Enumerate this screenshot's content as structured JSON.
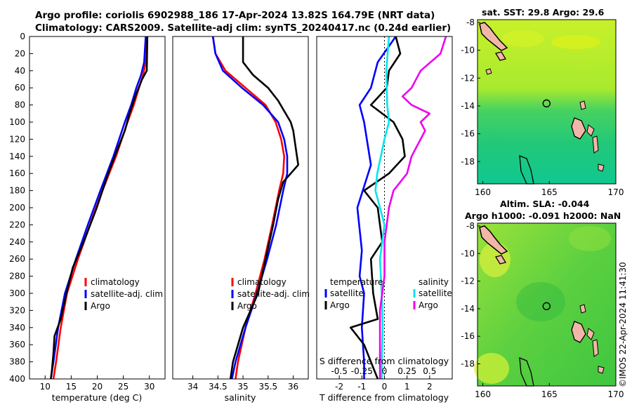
{
  "header": {
    "line1": "Argo profile: coriolis 6902988_186 17-Apr-2024 13.82S 164.79E (NRT data)",
    "line2": "Climatology: CARS2009. Satellite-adj clim: synTS_20240417.nc (0.24d earlier)"
  },
  "colors": {
    "climatology": "#ff0000",
    "satellite": "#0000ff",
    "argo": "#000000",
    "sal_satellite": "#00e5ee",
    "sal_argo": "#ee00ee"
  },
  "chart_data": [
    {
      "type": "line",
      "name": "temperature",
      "xlabel": "temperature (deg C)",
      "ylabel": "",
      "xlim": [
        7,
        33
      ],
      "ylim": [
        0,
        400
      ],
      "xticks": [
        10,
        15,
        20,
        25,
        30
      ],
      "yticks": [
        0,
        20,
        40,
        60,
        80,
        100,
        120,
        140,
        160,
        180,
        200,
        220,
        240,
        260,
        280,
        300,
        320,
        340,
        360,
        380,
        400
      ],
      "legend": [
        "climatology",
        "satellite-adj. clim",
        "Argo"
      ],
      "series": [
        {
          "name": "climatology",
          "depth": [
            0,
            30,
            45,
            60,
            80,
            100,
            140,
            180,
            220,
            260,
            300,
            340,
            380,
            400
          ],
          "values": [
            29.5,
            29.3,
            28.8,
            28.0,
            27.0,
            25.8,
            23.6,
            21.0,
            18.6,
            16.3,
            14.2,
            13.0,
            12.1,
            11.6
          ]
        },
        {
          "name": "satellite-adj. clim",
          "depth": [
            0,
            30,
            45,
            60,
            80,
            100,
            140,
            180,
            220,
            260,
            300,
            340,
            380,
            400
          ],
          "values": [
            29.3,
            29.0,
            28.4,
            27.5,
            26.5,
            25.3,
            23.1,
            20.6,
            18.2,
            15.9,
            13.8,
            12.5,
            11.6,
            11.1
          ]
        },
        {
          "name": "Argo",
          "depth": [
            0,
            40,
            50,
            70,
            90,
            110,
            130,
            160,
            200,
            240,
            270,
            300,
            330,
            350,
            370,
            390,
            400
          ],
          "values": [
            29.6,
            29.5,
            28.6,
            27.3,
            26.2,
            25.3,
            24.0,
            22.1,
            19.9,
            17.4,
            15.3,
            14.1,
            13.0,
            11.8,
            11.6,
            11.3,
            11.1
          ]
        }
      ]
    },
    {
      "type": "line",
      "name": "salinity",
      "xlabel": "salinity",
      "ylabel": "",
      "xlim": [
        33.6,
        36.3
      ],
      "ylim": [
        0,
        400
      ],
      "xticks": [
        34,
        34.5,
        35,
        35.5,
        36
      ],
      "legend": [
        "climatology",
        "satellite-adj. clim",
        "Argo"
      ],
      "series": [
        {
          "name": "climatology",
          "depth": [
            0,
            20,
            40,
            60,
            80,
            100,
            120,
            140,
            160,
            180,
            220,
            260,
            300,
            340,
            380,
            400
          ],
          "values": [
            34.4,
            34.45,
            34.65,
            35.05,
            35.45,
            35.65,
            35.76,
            35.82,
            35.8,
            35.72,
            35.58,
            35.43,
            35.25,
            35.05,
            34.9,
            34.85
          ]
        },
        {
          "name": "satellite-adj. clim",
          "depth": [
            0,
            20,
            40,
            60,
            80,
            100,
            120,
            140,
            160,
            180,
            220,
            260,
            300,
            340,
            380,
            400
          ],
          "values": [
            34.4,
            34.45,
            34.6,
            34.98,
            35.4,
            35.7,
            35.82,
            35.88,
            35.88,
            35.8,
            35.66,
            35.48,
            35.28,
            35.05,
            34.85,
            34.78
          ]
        },
        {
          "name": "Argo",
          "depth": [
            0,
            20,
            30,
            45,
            60,
            75,
            90,
            100,
            110,
            130,
            150,
            170,
            190,
            220,
            260,
            300,
            340,
            380,
            400
          ],
          "values": [
            35.0,
            35.0,
            35.0,
            35.2,
            35.5,
            35.7,
            35.85,
            35.95,
            36.0,
            36.05,
            36.1,
            35.8,
            35.7,
            35.6,
            35.45,
            35.3,
            35.0,
            34.8,
            34.75
          ]
        }
      ]
    },
    {
      "type": "line",
      "name": "difference",
      "xlabel": "T difference from climatology",
      "xlabel_top": "S difference from climatology",
      "xlim": [
        -3,
        3
      ],
      "ylim": [
        0,
        400
      ],
      "xticks": [
        -2,
        -1,
        0,
        1,
        2
      ],
      "xticks_top": [
        -0.5,
        -0.25,
        0,
        0.25,
        0.5
      ],
      "xticklabels_top": [
        "-0.5",
        "-0.25",
        "0",
        "0.25",
        "0.5"
      ],
      "legend_temperature": {
        "title": "temperature",
        "entries": [
          "satellite",
          "Argo"
        ]
      },
      "legend_salinity": {
        "title": "salinity",
        "entries": [
          "satellite",
          "Argo"
        ]
      },
      "series": [
        {
          "name": "temperature satellite",
          "depth": [
            0,
            30,
            60,
            80,
            100,
            150,
            200,
            250,
            280,
            300,
            340,
            380,
            400
          ],
          "values": [
            0.5,
            -0.3,
            -0.6,
            -1.1,
            -0.9,
            -0.6,
            -1.2,
            -1.0,
            -1.1,
            -0.9,
            -1.0,
            -0.9,
            -0.9
          ]
        },
        {
          "name": "temperature Argo",
          "depth": [
            0,
            20,
            40,
            60,
            80,
            100,
            120,
            140,
            160,
            180,
            200,
            240,
            260,
            300,
            330,
            340,
            350,
            360,
            380,
            400
          ],
          "values": [
            0.5,
            0.7,
            0.2,
            0.1,
            -0.6,
            0.4,
            0.8,
            0.9,
            0.2,
            -0.9,
            -0.3,
            -0.1,
            -0.6,
            -0.5,
            -0.3,
            -1.5,
            -1.2,
            -0.9,
            -0.6,
            -0.3
          ]
        },
        {
          "name": "salinity satellite",
          "depth": [
            0,
            40,
            80,
            100,
            120,
            160,
            180,
            200,
            220,
            260,
            300,
            340,
            380,
            400
          ],
          "values": [
            0.05,
            0.02,
            0.03,
            0.05,
            0.0,
            -0.08,
            -0.1,
            -0.05,
            0.0,
            -0.05,
            -0.03,
            -0.02,
            -0.03,
            -0.03
          ]
        },
        {
          "name": "salinity Argo",
          "depth": [
            0,
            20,
            40,
            60,
            70,
            80,
            90,
            100,
            110,
            120,
            140,
            160,
            180,
            200,
            240,
            280,
            320,
            360,
            380,
            400
          ],
          "values": [
            0.68,
            0.62,
            0.4,
            0.3,
            0.2,
            0.3,
            0.5,
            0.4,
            0.45,
            0.4,
            0.3,
            0.25,
            0.1,
            0.05,
            0.0,
            0.0,
            -0.05,
            -0.05,
            -0.05,
            -0.05
          ]
        }
      ]
    },
    {
      "type": "heatmap",
      "name": "sst_map",
      "title": "sat. SST: 29.8 Argo: 29.6",
      "xlim": [
        159.6,
        170
      ],
      "ylim": [
        -19.6,
        -7.8
      ],
      "xticks": [
        160,
        165,
        170
      ],
      "yticks": [
        -8,
        -10,
        -12,
        -14,
        -16,
        -18
      ],
      "marker": {
        "lon": 164.79,
        "lat": -13.82
      }
    },
    {
      "type": "heatmap",
      "name": "sla_map",
      "title_line1": "Altim. SLA: -0.044",
      "title_line2": "Argo h1000: -0.091 h2000: NaN",
      "xlim": [
        159.6,
        170
      ],
      "ylim": [
        -19.6,
        -7.8
      ],
      "xticks": [
        160,
        165,
        170
      ],
      "yticks": [
        -8,
        -10,
        -12,
        -14,
        -16,
        -18
      ],
      "marker": {
        "lon": 164.79,
        "lat": -13.82
      }
    }
  ],
  "credit": "©IMOS 22-Apr-2024 11:41:30"
}
